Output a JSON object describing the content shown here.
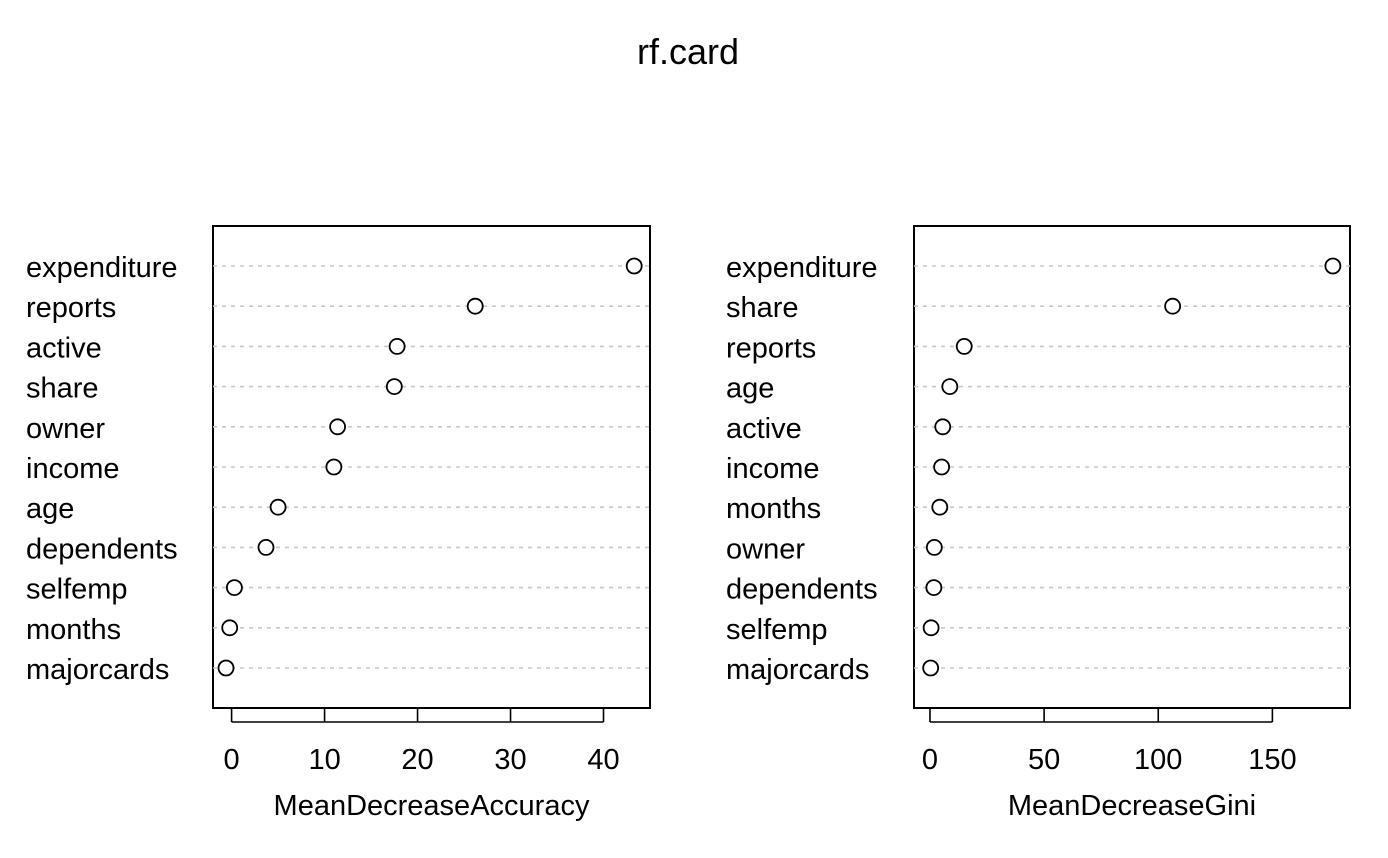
{
  "title": "rf.card",
  "chart_data": [
    {
      "type": "scatter",
      "variant": "dotchart",
      "xlabel": "MeanDecreaseAccuracy",
      "xlim": [
        -2,
        45
      ],
      "xticks": [
        0,
        10,
        20,
        30,
        40
      ],
      "grid": "dotted horizontal lines per row",
      "categories": [
        "expenditure",
        "reports",
        "active",
        "share",
        "owner",
        "income",
        "age",
        "dependents",
        "selfemp",
        "months",
        "majorcards"
      ],
      "values": [
        43.3,
        26.2,
        17.8,
        17.5,
        11.4,
        11.0,
        5.0,
        3.7,
        0.3,
        -0.2,
        -0.6
      ]
    },
    {
      "type": "scatter",
      "variant": "dotchart",
      "xlabel": "MeanDecreaseGini",
      "xlim": [
        -7,
        184
      ],
      "xticks": [
        0,
        50,
        100,
        150
      ],
      "grid": "dotted horizontal lines per row",
      "categories": [
        "expenditure",
        "share",
        "reports",
        "age",
        "active",
        "income",
        "months",
        "owner",
        "dependents",
        "selfemp",
        "majorcards"
      ],
      "values": [
        176.5,
        106.3,
        15.0,
        8.7,
        5.6,
        5.1,
        4.3,
        1.9,
        1.7,
        0.5,
        0.3
      ]
    }
  ]
}
